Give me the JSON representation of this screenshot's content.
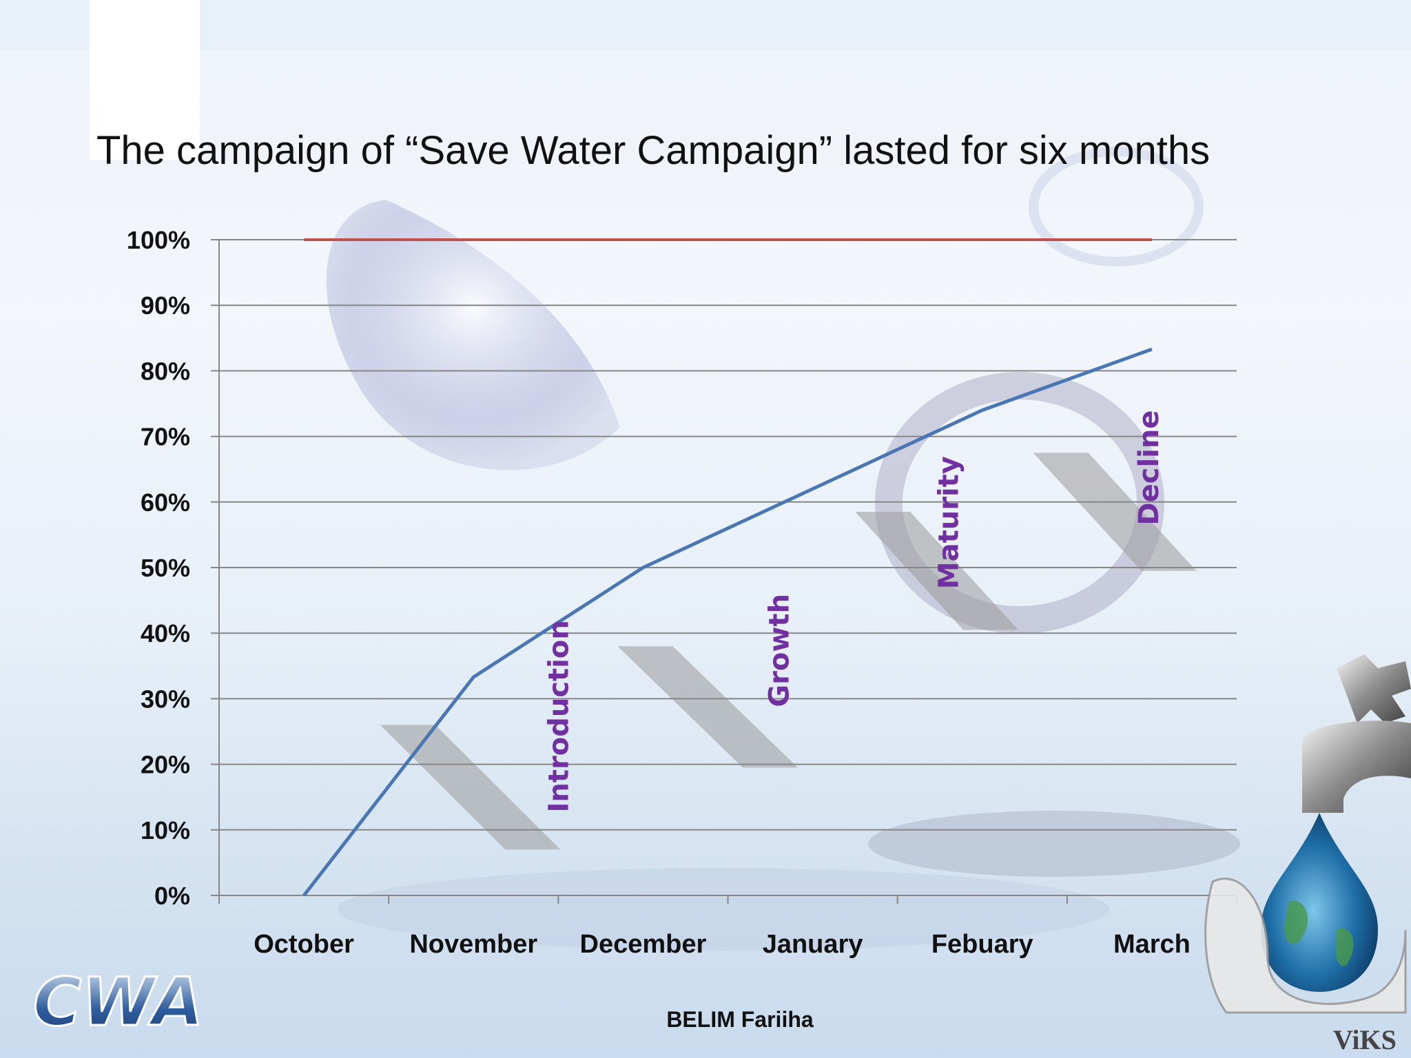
{
  "title": "The campaign of “Save Water Campaign” lasted for six months",
  "footer": "BELIM Fariiha",
  "logo_text": "CWA",
  "logo_corner_text": "ViKS",
  "chart_data": {
    "type": "line",
    "categories": [
      "October",
      "November",
      "December",
      "January",
      "Febuary",
      "March"
    ],
    "series": [
      {
        "values": [
          0.0,
          33.3,
          50.0,
          62.0,
          74.0,
          83.3
        ],
        "color": "#4a77b4"
      },
      {
        "values": [
          100,
          100,
          100,
          100,
          100,
          100
        ],
        "color": "#c0504d"
      }
    ],
    "ylim": [
      0,
      100
    ],
    "y_ticks": [
      "0%",
      "10%",
      "20%",
      "30%",
      "40%",
      "50%",
      "60%",
      "70%",
      "80%",
      "90%",
      "100%"
    ],
    "grid": true,
    "stages": [
      {
        "label": "Introduction",
        "at_x": 1.5,
        "text_top_value": 42
      },
      {
        "label": "Growth",
        "at_x": 2.8,
        "text_top_value": 46
      },
      {
        "label": "Maturity",
        "at_x": 3.8,
        "text_top_value": 67
      },
      {
        "label": "Decline",
        "at_x": 4.98,
        "text_top_value": 74
      }
    ],
    "stage_color": "#7030a0"
  }
}
